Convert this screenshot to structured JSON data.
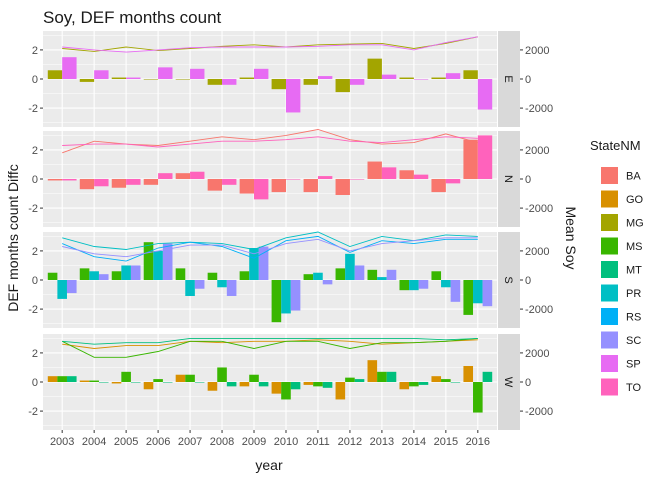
{
  "chart_data": {
    "type": "bar",
    "title": "Soy, DEF months count",
    "xlabel": "year",
    "ylabel": "DEF months count Diffc",
    "y2label": "Mean Soy",
    "years": [
      2003,
      2004,
      2005,
      2006,
      2007,
      2008,
      2009,
      2010,
      2011,
      2012,
      2013,
      2014,
      2015,
      2016
    ],
    "y_ticks": [
      -2,
      0,
      2
    ],
    "y2_ticks": [
      -2000,
      0,
      2000
    ],
    "ylim": [
      -3.3,
      3.3
    ],
    "legend_title": "StateNM",
    "legend_position": "right",
    "grid": true,
    "states": [
      {
        "name": "BA",
        "color": "#F8766D"
      },
      {
        "name": "GO",
        "color": "#D89000"
      },
      {
        "name": "MG",
        "color": "#A3A500"
      },
      {
        "name": "MS",
        "color": "#39B600"
      },
      {
        "name": "MT",
        "color": "#00BF7D"
      },
      {
        "name": "PR",
        "color": "#00BFC4"
      },
      {
        "name": "RS",
        "color": "#00B0F6"
      },
      {
        "name": "SC",
        "color": "#9590FF"
      },
      {
        "name": "SP",
        "color": "#E76BF3"
      },
      {
        "name": "TO",
        "color": "#FF62BC"
      }
    ],
    "panels": [
      {
        "label": "E",
        "bars": [
          {
            "state": "MG",
            "values": [
              0.6,
              -0.2,
              0.1,
              0.0,
              0.0,
              -0.4,
              0.1,
              -0.7,
              -0.4,
              -0.9,
              1.4,
              0.1,
              0.1,
              0.6
            ]
          },
          {
            "state": "SP",
            "values": [
              1.5,
              0.6,
              0.1,
              0.8,
              0.7,
              -0.4,
              0.7,
              -2.3,
              0.2,
              -0.4,
              0.3,
              0.0,
              0.4,
              -2.1
            ]
          }
        ],
        "lines": [
          {
            "state": "MG",
            "values": [
              2100,
              1900,
              2200,
              1950,
              2100,
              2250,
              2350,
              2200,
              2350,
              2400,
              2450,
              2100,
              2450,
              2900
            ]
          },
          {
            "state": "SP",
            "values": [
              2200,
              2000,
              1850,
              2000,
              2150,
              2200,
              2200,
              2200,
              2250,
              2350,
              2350,
              2000,
              2500,
              2900
            ]
          }
        ]
      },
      {
        "label": "N",
        "bars": [
          {
            "state": "BA",
            "values": [
              -0.1,
              -0.7,
              -0.6,
              -0.4,
              0.4,
              -0.8,
              -1.0,
              -0.9,
              -0.9,
              -1.1,
              1.2,
              0.6,
              -0.9,
              2.7
            ]
          },
          {
            "state": "TO",
            "values": [
              -0.1,
              -0.5,
              -0.4,
              0.4,
              0.5,
              -0.4,
              -1.4,
              0.0,
              0.2,
              0.0,
              0.8,
              0.3,
              -0.3,
              3.0
            ]
          }
        ],
        "lines": [
          {
            "state": "BA",
            "values": [
              1800,
              2600,
              2400,
              2300,
              2600,
              2900,
              2700,
              3000,
              3400,
              2700,
              2400,
              2500,
              3100,
              2500
            ]
          },
          {
            "state": "TO",
            "values": [
              2300,
              2400,
              2400,
              2200,
              2400,
              2600,
              2600,
              2700,
              2900,
              2600,
              2500,
              2700,
              2900,
              2800
            ]
          }
        ]
      },
      {
        "label": "S",
        "bars": [
          {
            "state": "MS",
            "values": [
              0.5,
              0.8,
              0.6,
              2.6,
              0.8,
              0.5,
              0.6,
              -2.9,
              0.4,
              0.8,
              0.7,
              -0.7,
              0.6,
              -2.4
            ]
          },
          {
            "state": "PR",
            "values": [
              -1.3,
              0.6,
              1.0,
              2.0,
              -1.1,
              -0.5,
              2.2,
              -2.3,
              0.5,
              1.8,
              0.2,
              -0.7,
              -0.5,
              -1.6
            ]
          },
          {
            "state": "SC",
            "values": [
              -0.9,
              0.4,
              1.0,
              2.5,
              -0.6,
              -1.1,
              2.3,
              -2.1,
              -0.3,
              1.0,
              0.7,
              -0.6,
              -1.5,
              -1.8
            ]
          }
        ],
        "lines": [
          {
            "state": "PR",
            "values": [
              2900,
              2300,
              2100,
              2500,
              2600,
              2500,
              2100,
              2900,
              3300,
              2300,
              3000,
              2700,
              3100,
              3000
            ]
          },
          {
            "state": "RS",
            "values": [
              2500,
              1600,
              1300,
              2200,
              2600,
              2300,
              1500,
              2700,
              3000,
              1900,
              2700,
              2500,
              2800,
              2800
            ]
          },
          {
            "state": "SC",
            "values": [
              2300,
              1800,
              1600,
              2000,
              2400,
              2400,
              1800,
              2500,
              2800,
              2000,
              2500,
              2700,
              2900,
              2900
            ]
          }
        ]
      },
      {
        "label": "W",
        "bars": [
          {
            "state": "GO",
            "values": [
              0.4,
              0.1,
              -0.1,
              -0.5,
              0.5,
              -0.6,
              -0.3,
              -0.8,
              -0.2,
              -1.2,
              1.5,
              -0.5,
              0.4,
              1.1
            ]
          },
          {
            "state": "MS",
            "values": [
              0.4,
              0.1,
              0.7,
              0.2,
              0.5,
              1.0,
              0.5,
              -1.2,
              -0.3,
              0.3,
              0.7,
              -0.3,
              0.2,
              -2.1
            ]
          },
          {
            "state": "MT",
            "values": [
              0.4,
              0.0,
              0.0,
              0.0,
              0.0,
              -0.3,
              -0.3,
              -0.5,
              -0.4,
              0.2,
              0.7,
              -0.2,
              0.0,
              0.7
            ]
          }
        ],
        "lines": [
          {
            "state": "GO",
            "values": [
              2600,
              2300,
              2500,
              2500,
              2800,
              2700,
              2800,
              2800,
              2900,
              2800,
              2600,
              2700,
              2800,
              2900
            ]
          },
          {
            "state": "MS",
            "values": [
              2800,
              1700,
              1700,
              2100,
              2800,
              2800,
              2300,
              2800,
              2800,
              2300,
              2700,
              2700,
              2800,
              3000
            ]
          },
          {
            "state": "MT",
            "values": [
              2800,
              2600,
              2700,
              2700,
              3000,
              3000,
              3000,
              3000,
              3000,
              3000,
              3000,
              3000,
              2900,
              3000
            ]
          }
        ]
      }
    ]
  }
}
